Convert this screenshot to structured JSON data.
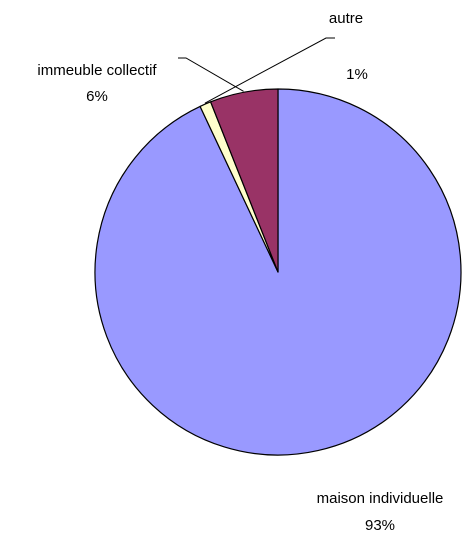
{
  "chart_data": {
    "type": "pie",
    "title": "",
    "slices": [
      {
        "label": "maison individuelle",
        "value": 93,
        "value_label": "93%",
        "color": "#9999ff"
      },
      {
        "label": "autre",
        "value": 1,
        "value_label": "1%",
        "color": "#ffffcc"
      },
      {
        "label": "immeuble collectif",
        "value": 6,
        "value_label": "6%",
        "color": "#993366"
      }
    ],
    "start_angle_deg": 0,
    "direction": "clockwise",
    "stroke_color": "#000000",
    "leader_lines": true,
    "legend": "none"
  }
}
